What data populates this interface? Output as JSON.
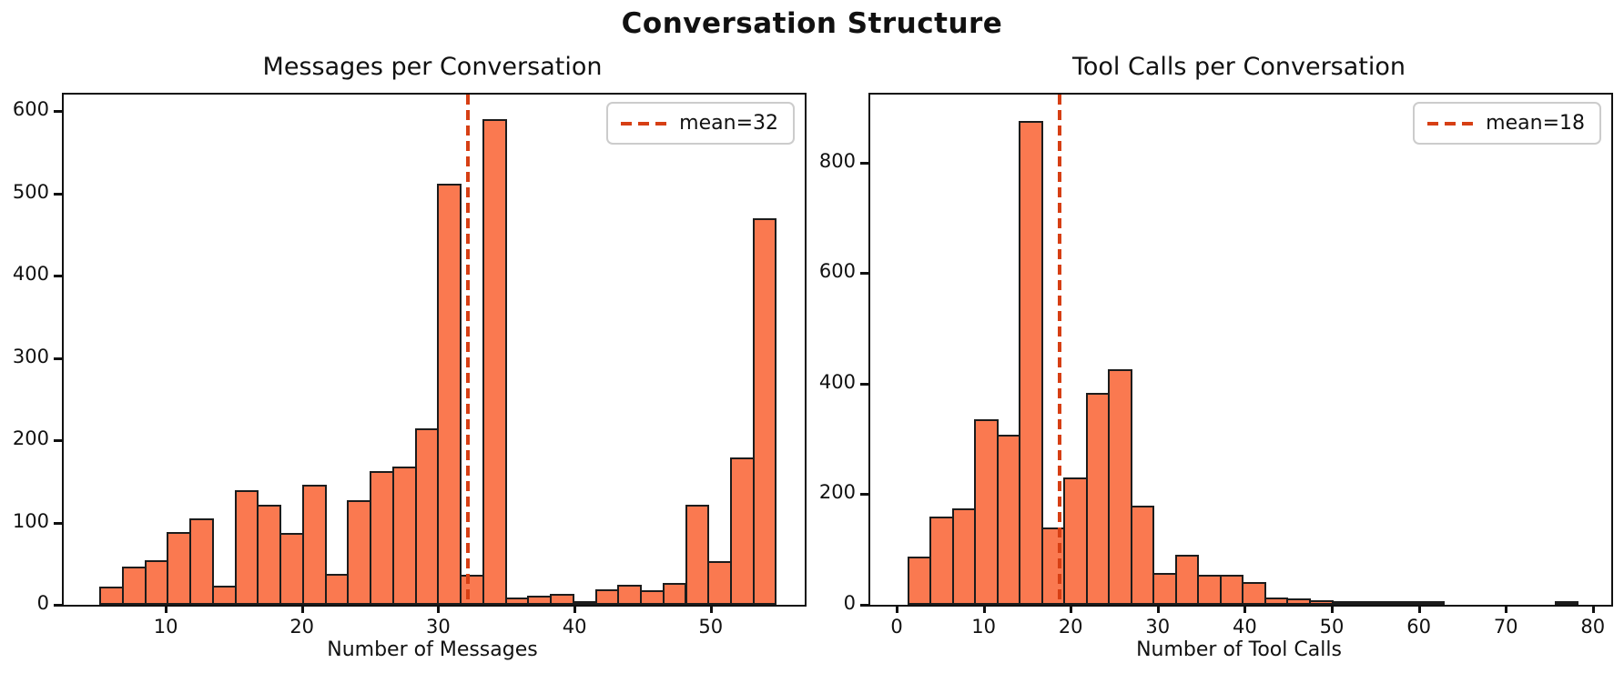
{
  "figure": {
    "title": "Conversation Structure",
    "background": "#ffffff"
  },
  "colors": {
    "bar_fill": "#fa7950",
    "bar_edge": "#1c1c1c",
    "mean_line": "#d63f14",
    "axis": "#111111",
    "legend_border": "#cccccc"
  },
  "chart_data": [
    {
      "id": "messages-histogram",
      "type": "bar",
      "title": "Messages per Conversation",
      "xlabel": "Number of Messages",
      "ylabel": "",
      "legend_label": "mean=32",
      "legend_position": "upper right",
      "mean_value": 32.07,
      "bin_start": 5.0,
      "bin_width": 1.653,
      "values": [
        22,
        46,
        54,
        89,
        105,
        23,
        139,
        122,
        87,
        146,
        38,
        127,
        163,
        168,
        214,
        512,
        36,
        590,
        9,
        11,
        13,
        2,
        19,
        24,
        18,
        27,
        122,
        53,
        179,
        470
      ],
      "xticks": [
        10,
        20,
        30,
        40,
        50
      ],
      "yticks": [
        0,
        100,
        200,
        300,
        400,
        500,
        600
      ],
      "xlim": [
        2.38,
        56.76
      ],
      "ylim": [
        0,
        620
      ],
      "grid": false
    },
    {
      "id": "tool-calls-histogram",
      "type": "bar",
      "title": "Tool Calls per Conversation",
      "xlabel": "Number of Tool Calls",
      "ylabel": "",
      "legend_label": "mean=18",
      "legend_position": "upper right",
      "mean_value": 18.5,
      "bin_start": 1.0,
      "bin_width": 2.565,
      "values": [
        88,
        160,
        175,
        335,
        308,
        875,
        140,
        230,
        383,
        427,
        180,
        58,
        90,
        55,
        55,
        42,
        14,
        12,
        9,
        5,
        3,
        2,
        3,
        1,
        0,
        0,
        0,
        0,
        0,
        2
      ],
      "xticks": [
        0,
        10,
        20,
        30,
        40,
        50,
        60,
        70,
        80
      ],
      "yticks": [
        0,
        200,
        400,
        600,
        800
      ],
      "xlim": [
        -3.24,
        81.9
      ],
      "ylim": [
        0,
        923
      ],
      "grid": false
    }
  ]
}
